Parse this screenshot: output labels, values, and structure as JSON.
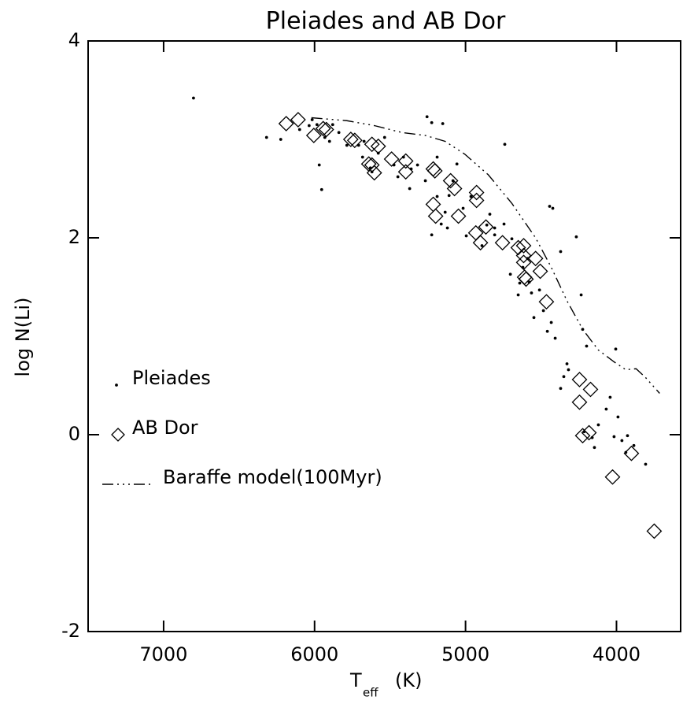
{
  "chart_data": {
    "type": "scatter",
    "title": "Pleiades and AB Dor",
    "xlabel": {
      "main": "T",
      "sub": "eff",
      "unit": "(K)"
    },
    "ylabel": "log N(Li)",
    "xlim": [
      7500,
      3575
    ],
    "ylim": [
      -2,
      4
    ],
    "xticks": [
      7000,
      6000,
      5000,
      4000
    ],
    "yticks": [
      -2,
      0,
      2,
      4
    ],
    "legend": "left",
    "grid": false,
    "series": [
      {
        "name": "Pleiades",
        "marker": "dot",
        "color": "#000000",
        "x": [
          6802,
          6318,
          6224,
          6099,
          6036,
          6016,
          5984,
          5969,
          5953,
          5932,
          5901,
          5880,
          5839,
          5786,
          5708,
          5682,
          5672,
          5630,
          5578,
          5536,
          5474,
          5448,
          5411,
          5370,
          5318,
          5266,
          5255,
          5224,
          5188,
          5188,
          5161,
          5151,
          5135,
          5120,
          5109,
          5083,
          5057,
          5016,
          4995,
          4964,
          4891,
          4839,
          4807,
          4745,
          4703,
          4740,
          4693,
          4651,
          4641,
          4620,
          4589,
          4578,
          4563,
          4547,
          4510,
          4484,
          4458,
          4432,
          4406,
          4370,
          4349,
          4443,
          4422,
          4370,
          4266,
          4328,
          4318,
          4234,
          4224,
          4198,
          4214,
          4161,
          4146,
          4120,
          4068,
          4042,
          4016,
          4005,
          3990,
          3964,
          3938,
          3927,
          3885,
          3807,
          4859,
          4807,
          5224,
          5360,
          5620
        ],
        "values": [
          3.42,
          3.02,
          3.0,
          3.1,
          3.14,
          3.2,
          3.15,
          2.74,
          2.49,
          3.02,
          2.98,
          3.15,
          3.07,
          2.94,
          2.94,
          2.82,
          2.98,
          2.71,
          2.86,
          3.02,
          2.74,
          2.62,
          2.82,
          2.5,
          2.74,
          2.58,
          3.23,
          3.17,
          2.42,
          2.82,
          2.14,
          3.16,
          2.26,
          2.1,
          2.43,
          2.58,
          2.75,
          2.3,
          2.02,
          2.42,
          1.92,
          2.24,
          2.03,
          2.14,
          1.63,
          2.95,
          1.99,
          1.42,
          1.54,
          1.7,
          1.79,
          1.55,
          1.44,
          1.19,
          1.47,
          1.26,
          1.05,
          1.14,
          0.98,
          0.47,
          0.59,
          2.32,
          2.3,
          1.86,
          2.01,
          0.72,
          0.66,
          1.42,
          1.07,
          0.9,
          0.03,
          -0.03,
          -0.13,
          0.1,
          0.26,
          0.38,
          -0.02,
          0.87,
          0.18,
          -0.06,
          -0.18,
          -0.01,
          -0.11,
          -0.3,
          2.13,
          2.1,
          2.03,
          2.7,
          2.67
        ]
      },
      {
        "name": "AB Dor",
        "marker": "diamond",
        "color": "#000000",
        "x": [
          6188,
          6109,
          6005,
          5943,
          5922,
          5760,
          5734,
          5620,
          5578,
          5641,
          5620,
          5604,
          5490,
          5396,
          5396,
          5214,
          5203,
          5214,
          5099,
          5073,
          5198,
          4927,
          4927,
          4932,
          5047,
          4901,
          4865,
          4755,
          4651,
          4615,
          4615,
          4615,
          4599,
          4609,
          4536,
          4505,
          4464,
          4245,
          4245,
          4224,
          4182,
          4172,
          4026,
          3901,
          3750
        ],
        "values": [
          3.16,
          3.2,
          3.04,
          3.11,
          3.1,
          3.0,
          2.99,
          2.95,
          2.93,
          2.75,
          2.74,
          2.66,
          2.8,
          2.78,
          2.67,
          2.7,
          2.68,
          2.34,
          2.58,
          2.5,
          2.22,
          2.46,
          2.38,
          2.05,
          2.22,
          1.95,
          2.11,
          1.95,
          1.9,
          1.92,
          1.82,
          1.75,
          1.58,
          1.6,
          1.79,
          1.66,
          1.35,
          0.33,
          0.56,
          -0.01,
          0.02,
          0.46,
          -0.43,
          -0.19,
          -0.98
        ]
      },
      {
        "name": "Baraffe model(100Myr)",
        "marker": "line",
        "color": "#000000",
        "x": [
          6021,
          5786,
          5604,
          5422,
          5266,
          5135,
          5005,
          4849,
          4693,
          4536,
          4432,
          4328,
          4224,
          4120,
          4016,
          3938,
          3870,
          3807,
          3714
        ],
        "values": [
          3.22,
          3.19,
          3.14,
          3.07,
          3.04,
          2.98,
          2.85,
          2.64,
          2.35,
          2.0,
          1.7,
          1.36,
          1.07,
          0.86,
          0.74,
          0.66,
          0.67,
          0.58,
          0.42
        ]
      }
    ]
  }
}
